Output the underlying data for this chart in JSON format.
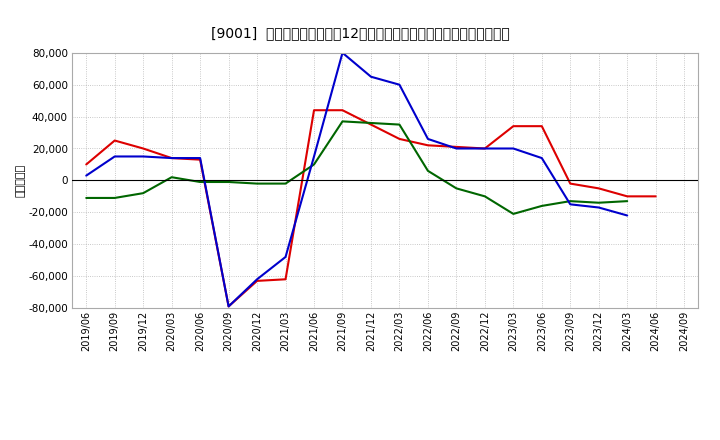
{
  "title": "[9001]  キャッシュフローの12か月移動合計の対前年同期増減額の推移",
  "ylabel": "（百万円）",
  "background_color": "#ffffff",
  "plot_bg_color": "#ffffff",
  "grid_color": "#999999",
  "x_labels": [
    "2019/06",
    "2019/09",
    "2019/12",
    "2020/03",
    "2020/06",
    "2020/09",
    "2020/12",
    "2021/03",
    "2021/06",
    "2021/09",
    "2021/12",
    "2022/03",
    "2022/06",
    "2022/09",
    "2022/12",
    "2023/03",
    "2023/06",
    "2023/09",
    "2023/12",
    "2024/03",
    "2024/06",
    "2024/09"
  ],
  "eigyo_cf": [
    10000,
    25000,
    20000,
    14000,
    13000,
    -79000,
    -63000,
    -62000,
    44000,
    44000,
    35000,
    26000,
    22000,
    21000,
    20000,
    34000,
    34000,
    -2000,
    -5000,
    -10000,
    -10000,
    null
  ],
  "toshi_cf": [
    -11000,
    -11000,
    -8000,
    2000,
    -1000,
    -1000,
    -2000,
    -2000,
    10000,
    37000,
    36000,
    35000,
    6000,
    -5000,
    -10000,
    -21000,
    -16000,
    -13000,
    -14000,
    -13000,
    null,
    null
  ],
  "free_cf": [
    3000,
    15000,
    15000,
    14000,
    14000,
    -79000,
    -62000,
    -48000,
    15000,
    80000,
    65000,
    60000,
    26000,
    20000,
    20000,
    20000,
    14000,
    -15000,
    -17000,
    -22000,
    null,
    null
  ],
  "eigyo_color": "#dd0000",
  "toshi_color": "#006600",
  "free_color": "#0000cc",
  "ylim": [
    -80000,
    80000
  ],
  "ytick_step": 20000
}
